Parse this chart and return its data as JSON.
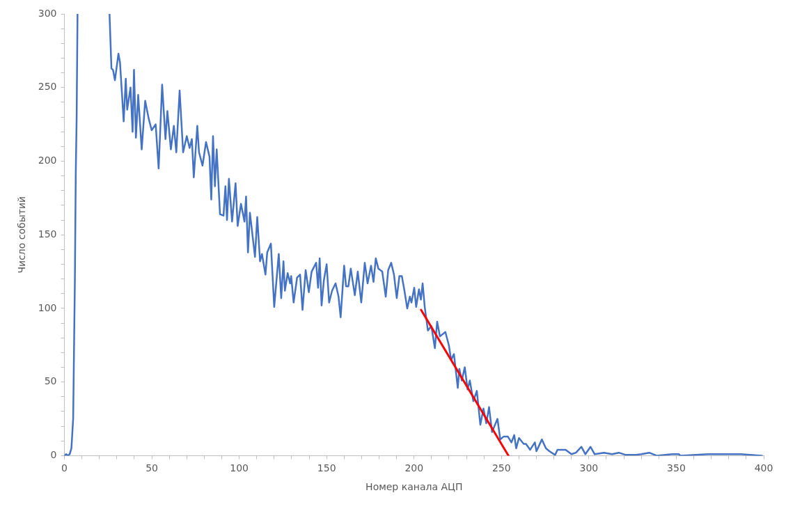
{
  "chart_data": {
    "type": "line",
    "xlabel": "Номер канала АЦП",
    "ylabel": "Число событий",
    "xlim": [
      0,
      400
    ],
    "ylim": [
      0,
      300
    ],
    "grid": false,
    "legend": false,
    "marker": "none",
    "line_style": "solid",
    "xticks": [
      0,
      {
        "value": 10,
        "label": null
      },
      {
        "value": 20,
        "label": null
      },
      {
        "value": 30,
        "label": null
      },
      {
        "value": 40,
        "label": null
      },
      50,
      {
        "value": 60,
        "label": null
      },
      {
        "value": 70,
        "label": null
      },
      {
        "value": 80,
        "label": null
      },
      {
        "value": 90,
        "label": null
      },
      100,
      {
        "value": 110,
        "label": null
      },
      {
        "value": 120,
        "label": null
      },
      {
        "value": 130,
        "label": null
      },
      {
        "value": 140,
        "label": null
      },
      150,
      {
        "value": 160,
        "label": null
      },
      {
        "value": 170,
        "label": null
      },
      {
        "value": 180,
        "label": null
      },
      {
        "value": 190,
        "label": null
      },
      200,
      {
        "value": 210,
        "label": null
      },
      {
        "value": 220,
        "label": null
      },
      {
        "value": 230,
        "label": null
      },
      {
        "value": 240,
        "label": null
      },
      250,
      {
        "value": 260,
        "label": null
      },
      {
        "value": 270,
        "label": null
      },
      {
        "value": 280,
        "label": null
      },
      {
        "value": 290,
        "label": null
      },
      300,
      {
        "value": 310,
        "label": null
      },
      {
        "value": 320,
        "label": null
      },
      {
        "value": 330,
        "label": null
      },
      {
        "value": 340,
        "label": null
      },
      350,
      {
        "value": 360,
        "label": null
      },
      {
        "value": 370,
        "label": null
      },
      {
        "value": 380,
        "label": null
      },
      {
        "value": 390,
        "label": null
      },
      400
    ],
    "yticks": [
      0,
      {
        "value": 10,
        "label": null
      },
      {
        "value": 20,
        "label": null
      },
      {
        "value": 30,
        "label": null
      },
      {
        "value": 40,
        "label": null
      },
      50,
      {
        "value": 60,
        "label": null
      },
      {
        "value": 70,
        "label": null
      },
      {
        "value": 80,
        "label": null
      },
      {
        "value": 90,
        "label": null
      },
      100,
      {
        "value": 110,
        "label": null
      },
      {
        "value": 120,
        "label": null
      },
      {
        "value": 130,
        "label": null
      },
      {
        "value": 140,
        "label": null
      },
      150,
      {
        "value": 160,
        "label": null
      },
      {
        "value": 170,
        "label": null
      },
      {
        "value": 180,
        "label": null
      },
      {
        "value": 190,
        "label": null
      },
      200,
      {
        "value": 210,
        "label": null
      },
      {
        "value": 220,
        "label": null
      },
      {
        "value": 230,
        "label": null
      },
      {
        "value": 240,
        "label": null
      },
      250,
      {
        "value": 260,
        "label": null
      },
      {
        "value": 270,
        "label": null
      },
      {
        "value": 280,
        "label": null
      },
      {
        "value": 290,
        "label": null
      },
      300
    ],
    "series": [
      {
        "color": "#4472c4",
        "x": [
          0,
          1,
          2,
          3,
          4,
          5,
          6,
          6.5,
          7,
          7.5,
          16,
          25.8,
          26.9,
          27.8,
          28.9,
          30.9,
          31.8,
          33.9,
          35.1,
          35.9,
          37.8,
          39.0,
          39.8,
          40.9,
          42.2,
          44.2,
          46.2,
          48.2,
          49.9,
          52.2,
          53.9,
          55.9,
          57.8,
          58.9,
          60.9,
          62.6,
          64.0,
          65.9,
          67.9,
          70.0,
          71.6,
          72.9,
          74.0,
          76.0,
          77.0,
          79.0,
          81.0,
          83.0,
          84.0,
          85.0,
          86.1,
          87.1,
          89.0,
          91.0,
          92.1,
          93.0,
          94.1,
          95.9,
          97.9,
          99.1,
          101.0,
          103.0,
          103.9,
          105.0,
          106.1,
          109.0,
          110.3,
          111.9,
          113.0,
          115.0,
          116.0,
          118.1,
          120.0,
          122.6,
          124.0,
          125.3,
          126.1,
          127.7,
          129.1,
          129.7,
          131.1,
          133.1,
          134.8,
          136.2,
          138.0,
          139.8,
          141.4,
          144.0,
          145.1,
          146.0,
          147.1,
          148.4,
          150.0,
          151.4,
          153.1,
          155.1,
          156.8,
          158.0,
          160.0,
          161.1,
          162.4,
          163.8,
          166.1,
          167.8,
          169.8,
          171.8,
          173.4,
          175.4,
          176.8,
          178.1,
          179.6,
          181.8,
          183.8,
          185.2,
          186.9,
          188.5,
          190.1,
          191.6,
          193.0,
          194.5,
          196.1,
          197.6,
          198.5,
          200.1,
          201.2,
          202.8,
          203.9,
          204.9,
          206.1,
          207.9,
          209.9,
          211.9,
          213.2,
          214.8,
          217.9,
          219.9,
          221.2,
          222.8,
          225.0,
          225.9,
          227.3,
          229.0,
          230.6,
          231.9,
          233.9,
          235.9,
          237.9,
          239.7,
          241.3,
          242.9,
          244.6,
          247.7,
          249.3,
          251.3,
          253.6,
          255.7,
          257.3,
          258.4,
          260.0,
          262.7,
          264.0,
          266.4,
          269.1,
          270.0,
          273.1,
          275.4,
          277.4,
          280.7,
          282.0,
          286.7,
          290.0,
          292.6,
          295.7,
          298.0,
          300.9,
          303.3,
          308.6,
          313.3,
          317.1,
          321.2,
          326.8,
          330.0,
          334.5,
          338.8,
          347.5,
          351.5,
          352.2,
          368.0,
          376.9,
          387.0,
          399.0
        ],
        "values": [
          0,
          1,
          0,
          1,
          5,
          25,
          120,
          192,
          230,
          300,
          null,
          300,
          263,
          262,
          255,
          273,
          267,
          227,
          256,
          235,
          250,
          220,
          262,
          216,
          245,
          208,
          241,
          229,
          221,
          225,
          195,
          252,
          215,
          234,
          208,
          224,
          206,
          248,
          206,
          217,
          209,
          215,
          189,
          224,
          206,
          197,
          213,
          203,
          174,
          217,
          183,
          208,
          164,
          163,
          183,
          160,
          188,
          159,
          185,
          156,
          171,
          159,
          176,
          138,
          165,
          135,
          162,
          132,
          137,
          123,
          138,
          144,
          101,
          137,
          107,
          132,
          112,
          124,
          117,
          122,
          104,
          121,
          123,
          99,
          126,
          111,
          125,
          131,
          114,
          134,
          102,
          119,
          130,
          104,
          112,
          117,
          108,
          94,
          129,
          115,
          115,
          127,
          109,
          125,
          104,
          131,
          117,
          129,
          118,
          134,
          127,
          125,
          108,
          126,
          131,
          123,
          107,
          122,
          122,
          112,
          100,
          108,
          104,
          114,
          101,
          113,
          106,
          117,
          101,
          85,
          88,
          73,
          91,
          81,
          84,
          75,
          65,
          69,
          46,
          59,
          51,
          60,
          45,
          51,
          37,
          44,
          21,
          32,
          22,
          33,
          16,
          25,
          11,
          13,
          13,
          9,
          14,
          5,
          12,
          8,
          8,
          4,
          9,
          3,
          11,
          5,
          3,
          0.5,
          4,
          4,
          1,
          2,
          6,
          1,
          6,
          1,
          2,
          1,
          2,
          0.5,
          0.5,
          1,
          2,
          0,
          1,
          1,
          0,
          1,
          1,
          1,
          0
        ]
      },
      {
        "type": "line",
        "color": "#ff0000",
        "x": [
          204,
          254
        ],
        "values": [
          99,
          0
        ]
      }
    ]
  }
}
